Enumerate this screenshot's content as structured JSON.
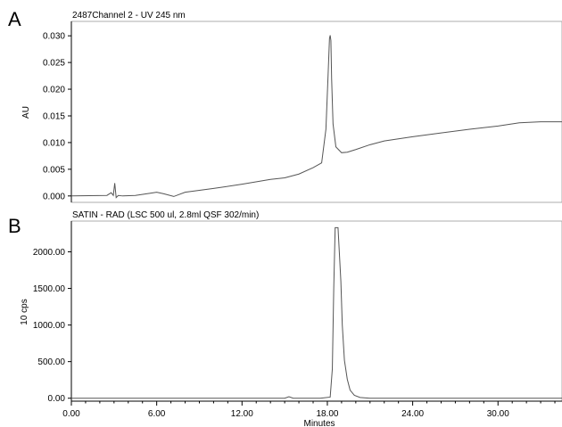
{
  "chart_data": [
    {
      "type": "line",
      "panel": "A",
      "title": "2487Channel 2 - UV 245 nm",
      "xlabel": "",
      "ylabel": "AU",
      "xlim": [
        0,
        34.5
      ],
      "ylim": [
        -0.0012,
        0.0327
      ],
      "y_ticks": [
        "0.000",
        "0.005",
        "0.010",
        "0.015",
        "0.020",
        "0.025",
        "0.030"
      ],
      "x_ticks": [],
      "grid": false,
      "series": [
        {
          "x": [
            0,
            2.5,
            2.8,
            2.95,
            3.05,
            3.15,
            3.3,
            3.6,
            4.5,
            5.5,
            6.0,
            6.5,
            7.2,
            8.0,
            10,
            12,
            14,
            15.0,
            16,
            17,
            17.6,
            17.9,
            18.05,
            18.15,
            18.2,
            18.25,
            18.3,
            18.4,
            18.6,
            19.0,
            19.4,
            20,
            21,
            22,
            24,
            26,
            28,
            30,
            31.5,
            33,
            34.5
          ],
          "y": [
            0.0,
            0.0001,
            0.0006,
            0.0001,
            0.0024,
            -0.0003,
            0.0001,
            0.0,
            0.0001,
            0.0005,
            0.0007,
            0.0004,
            -0.0001,
            0.0007,
            0.0014,
            0.0022,
            0.0031,
            0.0034,
            0.0041,
            0.0053,
            0.0062,
            0.0125,
            0.0225,
            0.0295,
            0.0301,
            0.0291,
            0.022,
            0.0135,
            0.0092,
            0.0081,
            0.0082,
            0.0087,
            0.0096,
            0.0103,
            0.0111,
            0.0118,
            0.0125,
            0.0131,
            0.0137,
            0.0139,
            0.0139
          ]
        }
      ]
    },
    {
      "type": "line",
      "panel": "B",
      "title": "SATIN  - RAD (LSC 500 ul, 2.8ml QSF 302/min)",
      "xlabel": "Minutes",
      "ylabel": "10 cps",
      "xlim": [
        0,
        34.5
      ],
      "ylim": [
        -40,
        2420
      ],
      "y_ticks": [
        "0.00",
        "500.00",
        "1000.00",
        "1500.00",
        "2000.00"
      ],
      "x_ticks": [
        "0.00",
        "6.00",
        "12.00",
        "18.00",
        "24.00",
        "30.00"
      ],
      "grid": false,
      "series": [
        {
          "x": [
            0,
            15.0,
            15.3,
            15.6,
            16,
            17.5,
            18.2,
            18.35,
            18.45,
            18.55,
            18.75,
            18.95,
            19.05,
            19.2,
            19.4,
            19.6,
            19.9,
            20.3,
            21,
            24,
            30,
            34.5
          ],
          "y": [
            0,
            0,
            20,
            0,
            0,
            0,
            15,
            400,
            1500,
            2330,
            2330,
            1600,
            1000,
            520,
            260,
            110,
            40,
            10,
            0,
            0,
            0,
            0
          ]
        }
      ]
    }
  ]
}
